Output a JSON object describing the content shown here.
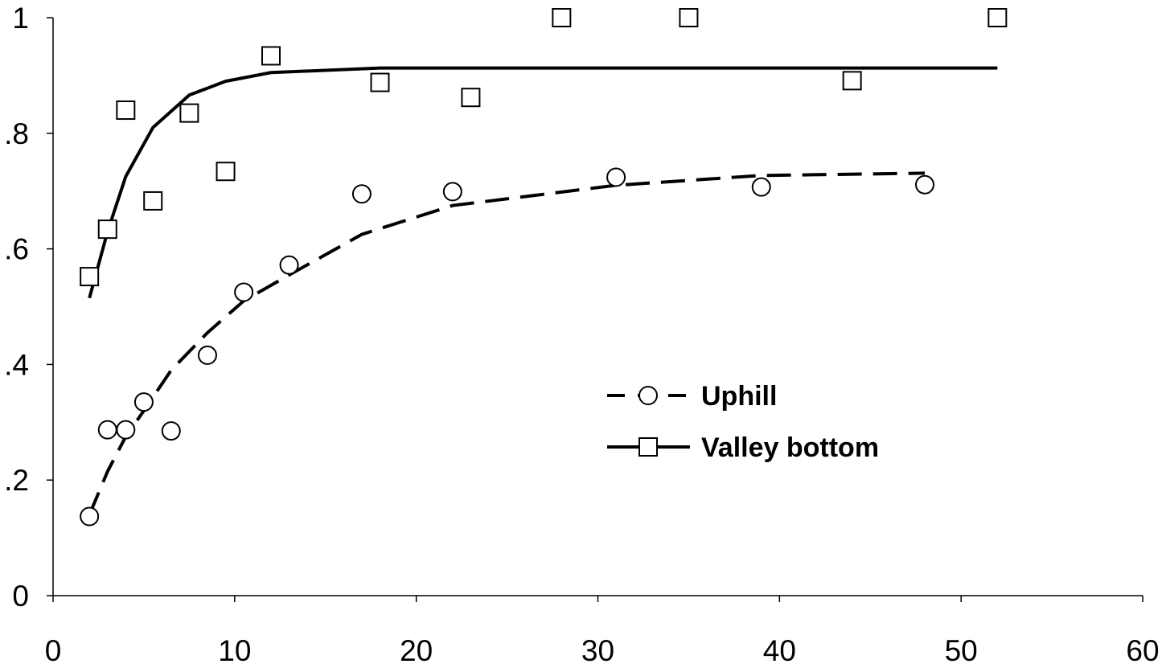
{
  "chart_data": {
    "type": "scatter",
    "title": "",
    "xlabel": "",
    "ylabel": "",
    "xlim": [
      0,
      60
    ],
    "ylim": [
      0,
      1
    ],
    "x_ticks": [
      0,
      10,
      20,
      30,
      40,
      50,
      60
    ],
    "y_ticks": [
      0,
      0.2,
      0.4,
      0.6,
      0.8,
      1
    ],
    "y_tick_labels": [
      "0",
      ".2",
      ".4",
      ".6",
      ".8",
      "1"
    ],
    "grid": false,
    "legend": {
      "placement": "center-right"
    },
    "series": [
      {
        "name": "Uphill",
        "marker": "circle",
        "line_style": "dashed",
        "color": "#000000",
        "points": [
          {
            "x": 2,
            "y": 0.137
          },
          {
            "x": 3,
            "y": 0.287
          },
          {
            "x": 4,
            "y": 0.287
          },
          {
            "x": 5,
            "y": 0.335
          },
          {
            "x": 6.5,
            "y": 0.285
          },
          {
            "x": 8.5,
            "y": 0.416
          },
          {
            "x": 10.5,
            "y": 0.525
          },
          {
            "x": 13,
            "y": 0.572
          },
          {
            "x": 17,
            "y": 0.695
          },
          {
            "x": 22,
            "y": 0.699
          },
          {
            "x": 31,
            "y": 0.724
          },
          {
            "x": 39,
            "y": 0.707
          },
          {
            "x": 48,
            "y": 0.711
          }
        ],
        "fit": [
          {
            "x": 2,
            "y": 0.14
          },
          {
            "x": 3,
            "y": 0.215
          },
          {
            "x": 4,
            "y": 0.275
          },
          {
            "x": 5,
            "y": 0.32
          },
          {
            "x": 6.5,
            "y": 0.39
          },
          {
            "x": 8.5,
            "y": 0.455
          },
          {
            "x": 10.5,
            "y": 0.51
          },
          {
            "x": 13,
            "y": 0.555
          },
          {
            "x": 17,
            "y": 0.625
          },
          {
            "x": 22,
            "y": 0.675
          },
          {
            "x": 31,
            "y": 0.71
          },
          {
            "x": 39,
            "y": 0.727
          },
          {
            "x": 48,
            "y": 0.731
          }
        ]
      },
      {
        "name": "Valley bottom",
        "marker": "square",
        "line_style": "solid",
        "color": "#000000",
        "points": [
          {
            "x": 2,
            "y": 0.552
          },
          {
            "x": 3,
            "y": 0.634
          },
          {
            "x": 4,
            "y": 0.84
          },
          {
            "x": 5.5,
            "y": 0.683
          },
          {
            "x": 7.5,
            "y": 0.835
          },
          {
            "x": 9.5,
            "y": 0.734
          },
          {
            "x": 12,
            "y": 0.934
          },
          {
            "x": 18,
            "y": 0.888
          },
          {
            "x": 23,
            "y": 0.862
          },
          {
            "x": 28,
            "y": 1.0
          },
          {
            "x": 35,
            "y": 1.0
          },
          {
            "x": 44,
            "y": 0.891
          },
          {
            "x": 52,
            "y": 1.0
          }
        ],
        "fit": [
          {
            "x": 2,
            "y": 0.515
          },
          {
            "x": 3,
            "y": 0.63
          },
          {
            "x": 4,
            "y": 0.725
          },
          {
            "x": 5.5,
            "y": 0.81
          },
          {
            "x": 7.5,
            "y": 0.866
          },
          {
            "x": 9.5,
            "y": 0.89
          },
          {
            "x": 12,
            "y": 0.905
          },
          {
            "x": 18,
            "y": 0.913
          },
          {
            "x": 52,
            "y": 0.913
          }
        ]
      }
    ]
  }
}
